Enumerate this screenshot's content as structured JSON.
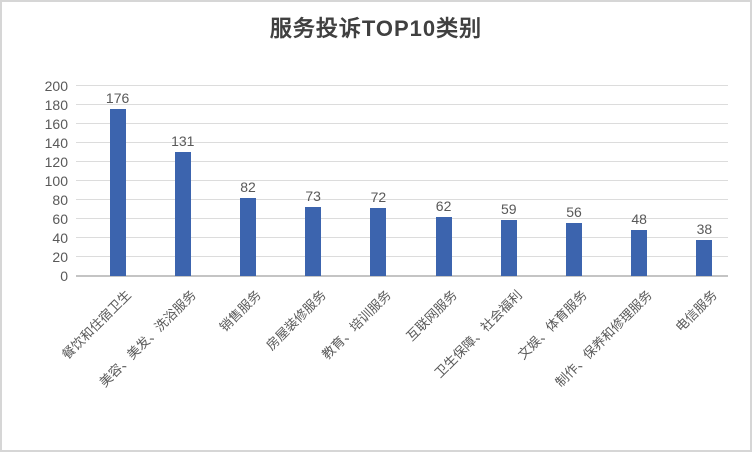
{
  "window": {
    "background": "#FFFFFF",
    "border_color": "#D6D6D6"
  },
  "chart_data": {
    "type": "bar",
    "title": "服务投诉TOP10类别",
    "categories": [
      "餐饮和住宿卫生",
      "美容、美发、洗浴服务",
      "销售服务",
      "房屋装修服务",
      "教育、培训服务",
      "互联网服务",
      "卫生保障、社会福利",
      "文娱、体育服务",
      "制作、保养和修理服务",
      "电信服务"
    ],
    "values": [
      176,
      131,
      82,
      73,
      72,
      62,
      59,
      56,
      48,
      38
    ],
    "xlabel": "",
    "ylabel": "",
    "ylim": [
      0,
      200
    ],
    "yticks": [
      0,
      20,
      40,
      60,
      80,
      100,
      120,
      140,
      160,
      180,
      200
    ],
    "grid": true,
    "legend": false,
    "data_labels": true,
    "bar_color": "#3C64AE",
    "gridline_color": "#DCDCDC",
    "axis_line_color": "#C4C4C4",
    "label_color": "#595959",
    "title_color": "#404040"
  }
}
